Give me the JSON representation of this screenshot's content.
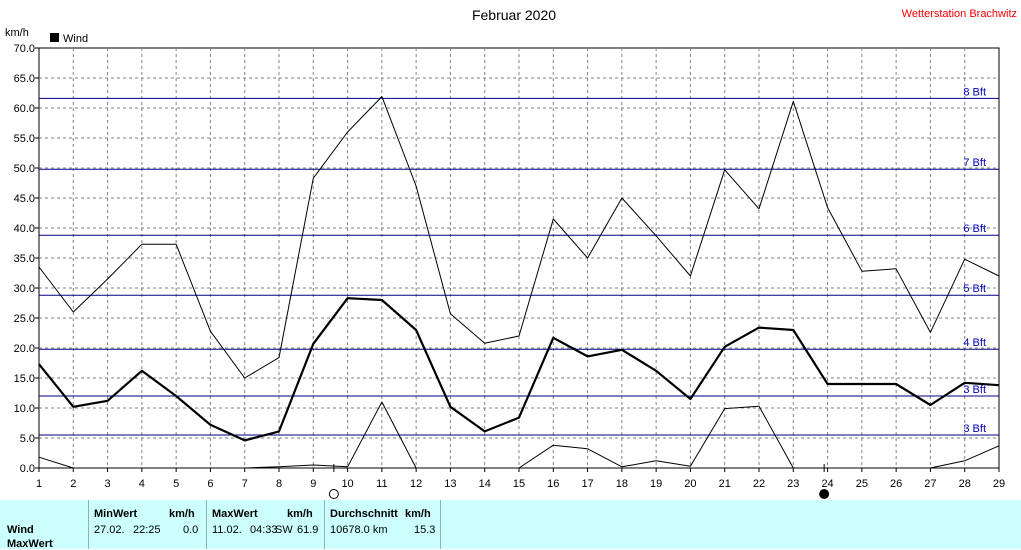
{
  "header": {
    "title": "Februar 2020",
    "station": "Wetterstation Brachwitz",
    "unit": "km/h"
  },
  "colors": {
    "station_text": "#ff0000",
    "bft_line": "#000080",
    "bft_label": "#0000c0",
    "grid": "#808080",
    "panel_bg": "#ccffff"
  },
  "chart_data": {
    "type": "line",
    "x": [
      1,
      2,
      3,
      4,
      5,
      6,
      7,
      8,
      9,
      10,
      11,
      12,
      13,
      14,
      15,
      16,
      17,
      18,
      19,
      20,
      21,
      22,
      23,
      24,
      25,
      26,
      27,
      28,
      29
    ],
    "xlim": [
      1,
      29
    ],
    "ylim": [
      0,
      70
    ],
    "ytick_step": 5,
    "ylabel": "km/h",
    "legend": "top-left",
    "grid": true,
    "series": [
      {
        "name": "Wind",
        "role": "average",
        "color": "#000000",
        "values": [
          17.3,
          10.2,
          11.2,
          16.2,
          12.0,
          7.2,
          4.6,
          6.1,
          20.7,
          28.3,
          28.0,
          23.0,
          10.2,
          6.1,
          8.4,
          21.7,
          18.6,
          19.7,
          16.2,
          11.5,
          20.2,
          23.4,
          23.0,
          14.0,
          14.0,
          14.0,
          10.5,
          14.2,
          13.8
        ]
      },
      {
        "role": "max",
        "color": "#000000",
        "values": [
          33.5,
          26.0,
          31.5,
          37.3,
          37.3,
          22.8,
          15.0,
          18.4,
          48.3,
          56.0,
          61.9,
          47.0,
          25.7,
          20.8,
          22.0,
          41.5,
          35.0,
          45.0,
          38.7,
          32.0,
          49.7,
          43.2,
          61.1,
          43.4,
          32.8,
          33.2,
          22.6,
          34.8,
          32.0
        ]
      },
      {
        "role": "min",
        "color": "#000000",
        "values": [
          1.8,
          0.0,
          null,
          null,
          null,
          null,
          0.0,
          0.2,
          0.5,
          0.2,
          11.0,
          0.0,
          null,
          null,
          0.0,
          3.8,
          3.2,
          0.2,
          1.2,
          0.3,
          9.9,
          10.3,
          0.0,
          0.0,
          null,
          null,
          0.0,
          1.2,
          3.7
        ]
      }
    ],
    "reference_lines": [
      {
        "label": "3 Bft",
        "value": 5.5
      },
      {
        "label": "3 Bft",
        "value": 12.0
      },
      {
        "label": "4 Bft",
        "value": 19.8
      },
      {
        "label": "5 Bft",
        "value": 28.8
      },
      {
        "label": "6 Bft",
        "value": 38.8
      },
      {
        "label": "7 Bft",
        "value": 49.8
      },
      {
        "label": "8 Bft",
        "value": 61.6
      }
    ],
    "moon_phases": [
      {
        "day": 9.6,
        "phase": "full"
      },
      {
        "day": 23.9,
        "phase": "new"
      }
    ]
  },
  "stats": {
    "row_labels": [
      "Wind",
      "MaxWert"
    ],
    "min": {
      "header": "MinWert",
      "unit": "km/h",
      "date": "27.02.",
      "time": "22:25",
      "value": "0.0"
    },
    "max": {
      "header": "MaxWert",
      "unit": "km/h",
      "date": "11.02.",
      "time": "04:33",
      "dir": "SW",
      "value": "61.9"
    },
    "avg": {
      "header": "Durchschnitt",
      "unit": "km/h",
      "distance": "10678.0 km",
      "value": "15.3"
    }
  }
}
